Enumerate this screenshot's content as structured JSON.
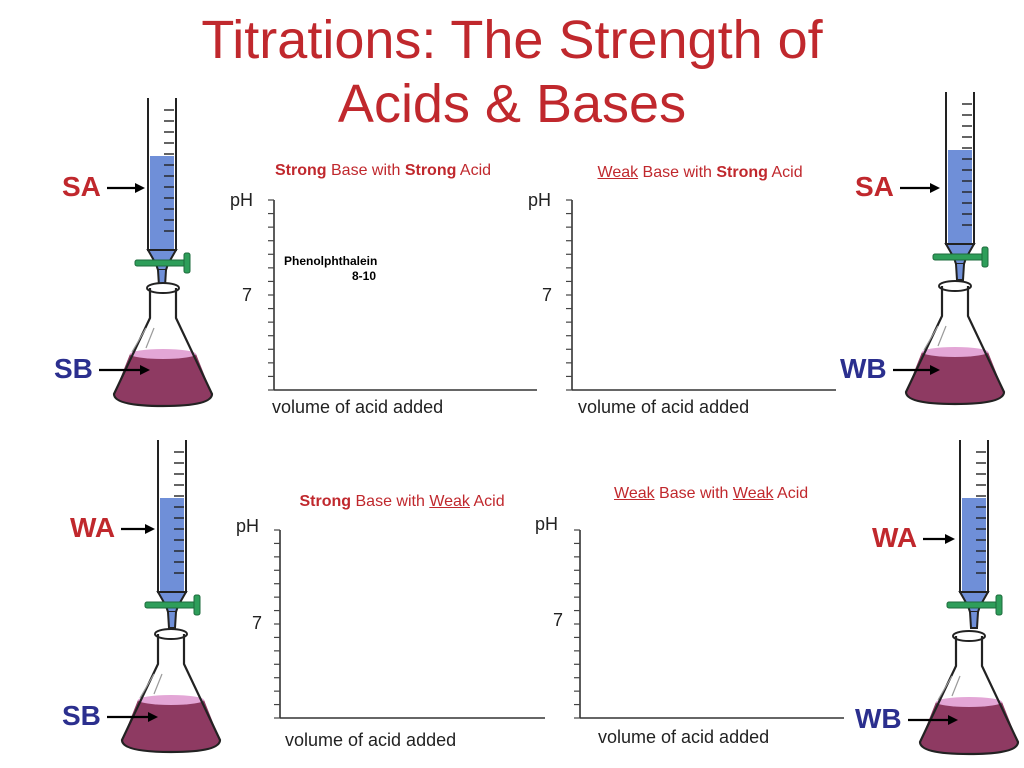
{
  "title_line1": "Titrations: The Strength of",
  "title_line2": "Acids & Bases",
  "colors": {
    "title": "#c0282d",
    "acid_label": "#c0282d",
    "base_label": "#2b2f8e",
    "burette_liquid": "#6f8fd8",
    "stopcock": "#2e9e5a",
    "flask_liquid": "#8e3a62",
    "flask_liquid_top": "#e3a6d6"
  },
  "panels": [
    {
      "caption_parts": [
        {
          "t": "Strong",
          "b": true
        },
        {
          "t": " Base with "
        },
        {
          "t": "Strong",
          "b": true
        },
        {
          "t": " Acid"
        }
      ],
      "y_label": "pH",
      "y_tick": "7",
      "x_label": "volume of acid added",
      "annotation_line1": "Phenolphthalein",
      "annotation_line2": "8-10"
    },
    {
      "caption_parts": [
        {
          "t": "Weak",
          "u": true
        },
        {
          "t": " Base with "
        },
        {
          "t": "Strong",
          "b": true
        },
        {
          "t": " Acid"
        }
      ],
      "y_label": "pH",
      "y_tick": "7",
      "x_label": "volume of acid added"
    },
    {
      "caption_parts": [
        {
          "t": "Strong",
          "b": true
        },
        {
          "t": " Base with "
        },
        {
          "t": "Weak",
          "u": true
        },
        {
          "t": " Acid"
        }
      ],
      "y_label": "pH",
      "y_tick": "7",
      "x_label": "volume of acid added"
    },
    {
      "caption_parts": [
        {
          "t": "Weak",
          "u": true
        },
        {
          "t": " Base with "
        },
        {
          "t": "Weak",
          "u": true
        },
        {
          "t": " Acid"
        }
      ],
      "y_label": "pH",
      "y_tick": "7",
      "x_label": "volume of acid added"
    }
  ],
  "apparatus": [
    {
      "acid": "SA",
      "base": "SB"
    },
    {
      "acid": "SA",
      "base": "WB"
    },
    {
      "acid": "WA",
      "base": "SB"
    },
    {
      "acid": "WA",
      "base": "WB"
    }
  ]
}
